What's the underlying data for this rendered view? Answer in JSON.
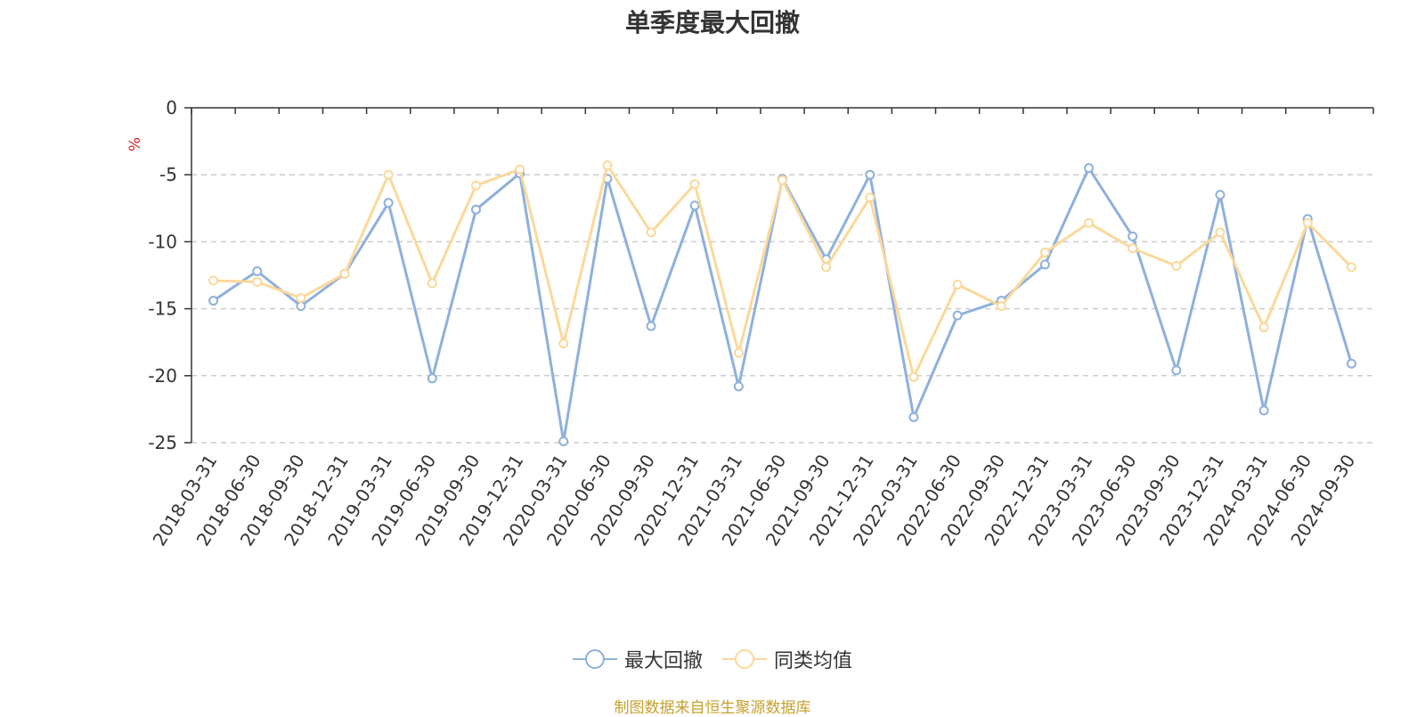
{
  "chart_data": {
    "type": "line",
    "title": "单季度最大回撤",
    "ylabel": "%",
    "xlabel": "",
    "ylim": [
      -25,
      0
    ],
    "yticks": [
      0,
      -5,
      -10,
      -15,
      -20,
      -25
    ],
    "categories": [
      "2018-03-31",
      "2018-06-30",
      "2018-09-30",
      "2018-12-31",
      "2019-03-31",
      "2019-06-30",
      "2019-09-30",
      "2019-12-31",
      "2020-03-31",
      "2020-06-30",
      "2020-09-30",
      "2020-12-31",
      "2021-03-31",
      "2021-06-30",
      "2021-09-30",
      "2021-12-31",
      "2022-03-31",
      "2022-06-30",
      "2022-09-30",
      "2022-12-31",
      "2023-03-31",
      "2023-06-30",
      "2023-09-30",
      "2023-12-31",
      "2024-03-31",
      "2024-06-30",
      "2024-09-30"
    ],
    "series": [
      {
        "name": "最大回撤",
        "color": "#8eb0dc",
        "values": [
          -14.4,
          -12.2,
          -14.8,
          -12.4,
          -7.1,
          -20.2,
          -7.6,
          -4.9,
          -24.9,
          -5.3,
          -16.3,
          -7.3,
          -20.8,
          -5.3,
          -11.3,
          -5.0,
          -23.1,
          -15.5,
          -14.4,
          -11.7,
          -4.5,
          -9.6,
          -19.6,
          -6.5,
          -22.6,
          -8.3,
          -19.1
        ]
      },
      {
        "name": "同类均值",
        "color": "#fbd89a",
        "values": [
          -12.9,
          -13.0,
          -14.2,
          -12.4,
          -5.0,
          -13.1,
          -5.8,
          -4.6,
          -17.6,
          -4.3,
          -9.3,
          -5.7,
          -18.3,
          -5.4,
          -11.9,
          -6.7,
          -20.1,
          -13.2,
          -14.8,
          -10.8,
          -8.6,
          -10.5,
          -11.8,
          -9.3,
          -16.4,
          -8.6,
          -11.9
        ]
      }
    ],
    "legend_position": "bottom-center",
    "grid": true
  },
  "footer": {
    "source": "制图数据来自恒生聚源数据库"
  }
}
